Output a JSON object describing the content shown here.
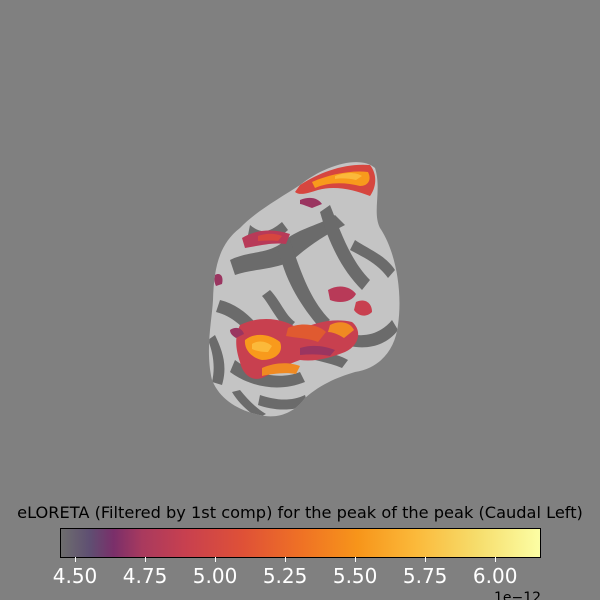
{
  "colorbar": {
    "title": "eLORETA (Filtered by 1st comp) for the peak of the peak (Caudal Left)",
    "ticks": [
      {
        "label": "4.50",
        "value": 4.5
      },
      {
        "label": "4.75",
        "value": 4.75
      },
      {
        "label": "5.00",
        "value": 5.0
      },
      {
        "label": "5.25",
        "value": 5.25
      },
      {
        "label": "5.50",
        "value": 5.5
      },
      {
        "label": "5.75",
        "value": 5.75
      },
      {
        "label": "6.00",
        "value": 6.0
      }
    ],
    "range": [
      4.45,
      6.16
    ],
    "exponent_label": "1e−12",
    "colormap": [
      "#6e6e6e",
      "#7a2f6a",
      "#c8404f",
      "#ef7125",
      "#fbb93a",
      "#fcfea4"
    ]
  },
  "colors": {
    "background": "#808080",
    "sulcus": "#696969",
    "gyrus": "#c4c4c4",
    "activation_low": "#7a2f6a",
    "activation_mid": "#d6463f",
    "activation_high": "#f89a1c"
  }
}
